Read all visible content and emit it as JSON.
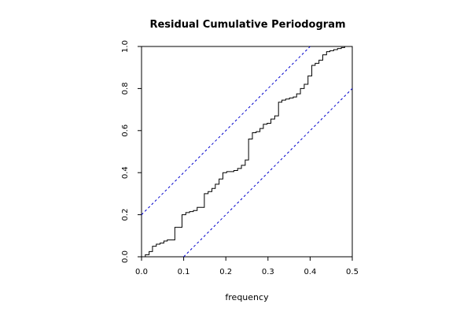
{
  "chart_data": {
    "type": "line",
    "title": "Residual Cumulative Periodogram",
    "xlabel": "frequency",
    "ylabel": "",
    "xlim": [
      0,
      0.5
    ],
    "ylim": [
      0,
      1
    ],
    "x_ticks": [
      "0.0",
      "0.1",
      "0.2",
      "0.3",
      "0.4",
      "0.5"
    ],
    "y_ticks": [
      "0.0",
      "0.2",
      "0.4",
      "0.6",
      "0.8",
      "1.0"
    ],
    "grid": false,
    "legend": "none",
    "series": [
      {
        "style": "step",
        "color": "#000000",
        "x": [
          0.0,
          0.009,
          0.018,
          0.026,
          0.035,
          0.044,
          0.053,
          0.061,
          0.07,
          0.079,
          0.088,
          0.096,
          0.105,
          0.114,
          0.123,
          0.132,
          0.14,
          0.149,
          0.158,
          0.167,
          0.175,
          0.184,
          0.193,
          0.202,
          0.211,
          0.219,
          0.228,
          0.237,
          0.246,
          0.254,
          0.263,
          0.272,
          0.281,
          0.289,
          0.298,
          0.307,
          0.316,
          0.325,
          0.333,
          0.342,
          0.351,
          0.36,
          0.368,
          0.377,
          0.386,
          0.395,
          0.404,
          0.412,
          0.421,
          0.43,
          0.439,
          0.447,
          0.456,
          0.465,
          0.474,
          0.482,
          0.491,
          0.5
        ],
        "y": [
          0.0,
          0.01,
          0.025,
          0.05,
          0.06,
          0.065,
          0.075,
          0.08,
          0.08,
          0.14,
          0.14,
          0.2,
          0.21,
          0.215,
          0.22,
          0.235,
          0.235,
          0.3,
          0.31,
          0.325,
          0.345,
          0.37,
          0.4,
          0.405,
          0.405,
          0.41,
          0.42,
          0.435,
          0.46,
          0.56,
          0.59,
          0.595,
          0.61,
          0.63,
          0.635,
          0.655,
          0.67,
          0.735,
          0.745,
          0.75,
          0.755,
          0.76,
          0.775,
          0.8,
          0.82,
          0.86,
          0.91,
          0.92,
          0.935,
          0.96,
          0.975,
          0.98,
          0.985,
          0.99,
          0.995,
          1.0,
          1.0,
          1.0
        ]
      },
      {
        "style": "dashed",
        "color": "#0000cc",
        "x": [
          0,
          0.4
        ],
        "y": [
          0.2,
          1.0
        ]
      },
      {
        "style": "dashed",
        "color": "#0000cc",
        "x": [
          0.1,
          0.5
        ],
        "y": [
          0.0,
          0.8
        ]
      }
    ]
  }
}
